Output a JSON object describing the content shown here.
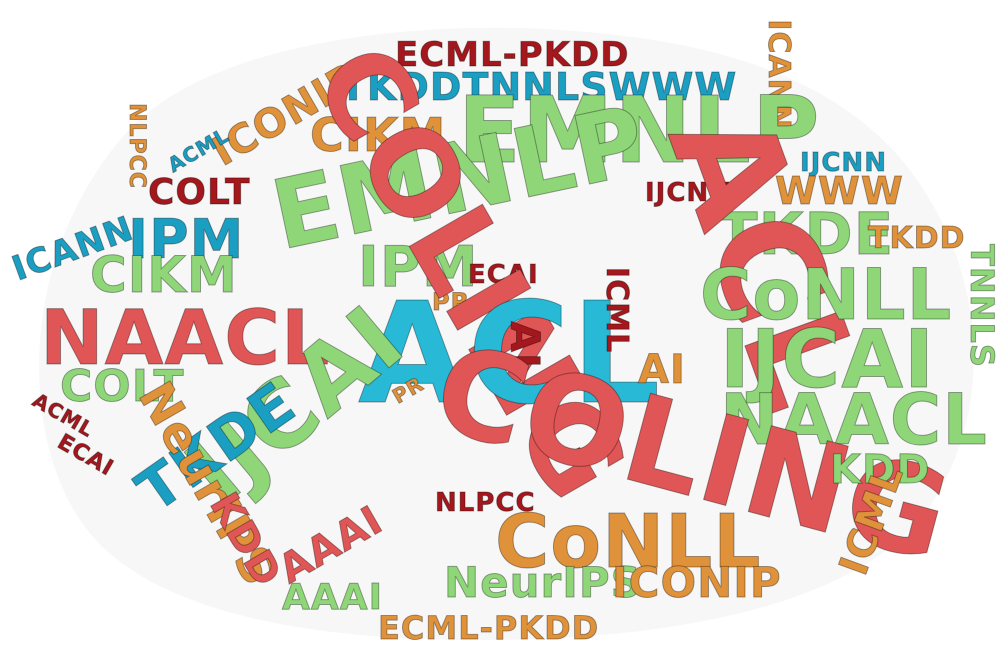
{
  "colors": {
    "red": "#e05555",
    "green": "#8fd679",
    "cyan": "#27b9d6",
    "orange": "#e0923a",
    "darkred": "#a4171c",
    "blue": "#1a9fc3",
    "background": "#ffffff",
    "cloud_shadow": "#eeeeee"
  },
  "words": [
    {
      "text": "ECML-PKDD",
      "color": "darkred"
    },
    {
      "text": "TKDDTNNLSWWW",
      "color": "blue"
    },
    {
      "text": "ICANN",
      "color": "orange"
    },
    {
      "text": "ICONIP",
      "color": "orange"
    },
    {
      "text": "ACML",
      "color": "blue"
    },
    {
      "text": "NLPCC",
      "color": "orange"
    },
    {
      "text": "CIKM",
      "color": "orange"
    },
    {
      "text": "EMNLP",
      "color": "green"
    },
    {
      "text": "EMNLP",
      "color": "green"
    },
    {
      "text": "IJCNN",
      "color": "blue"
    },
    {
      "text": "COLT",
      "color": "darkred"
    },
    {
      "text": "IJCNN",
      "color": "darkred"
    },
    {
      "text": "WWW",
      "color": "orange"
    },
    {
      "text": "ICANN",
      "color": "blue"
    },
    {
      "text": "IPM",
      "color": "blue"
    },
    {
      "text": "TKDE",
      "color": "green"
    },
    {
      "text": "TKDD",
      "color": "orange"
    },
    {
      "text": "CIKM",
      "color": "green"
    },
    {
      "text": "IPM",
      "color": "green"
    },
    {
      "text": "ECAI",
      "color": "darkred"
    },
    {
      "text": "ACL",
      "color": "red"
    },
    {
      "text": "CoNLL",
      "color": "green"
    },
    {
      "text": "PR",
      "color": "orange"
    },
    {
      "text": "TNNLS",
      "color": "green"
    },
    {
      "text": "NAACL",
      "color": "red"
    },
    {
      "text": "COLING",
      "color": "red"
    },
    {
      "text": "ACL",
      "color": "cyan"
    },
    {
      "text": "ICML",
      "color": "darkred"
    },
    {
      "text": "IJCAI",
      "color": "green"
    },
    {
      "text": "AI",
      "color": "darkred"
    },
    {
      "text": "AI",
      "color": "orange"
    },
    {
      "text": "COLT",
      "color": "green"
    },
    {
      "text": "PR",
      "color": "orange"
    },
    {
      "text": "NAACL",
      "color": "green"
    },
    {
      "text": "ACML",
      "color": "darkred"
    },
    {
      "text": "IJCAI",
      "color": "green"
    },
    {
      "text": "COLING",
      "color": "red"
    },
    {
      "text": "TKDE",
      "color": "blue"
    },
    {
      "text": "ECAI",
      "color": "darkred"
    },
    {
      "text": "NeurIPS",
      "color": "orange"
    },
    {
      "text": "KDD",
      "color": "green"
    },
    {
      "text": "NLPCC",
      "color": "darkred"
    },
    {
      "text": "ICML",
      "color": "orange"
    },
    {
      "text": "KDD",
      "color": "red"
    },
    {
      "text": "AAAI",
      "color": "red"
    },
    {
      "text": "CoNLL",
      "color": "orange"
    },
    {
      "text": "NeurIPS",
      "color": "green"
    },
    {
      "text": "ICONIP",
      "color": "orange"
    },
    {
      "text": "AAAI",
      "color": "green"
    },
    {
      "text": "ECML-PKDD",
      "color": "orange"
    }
  ]
}
